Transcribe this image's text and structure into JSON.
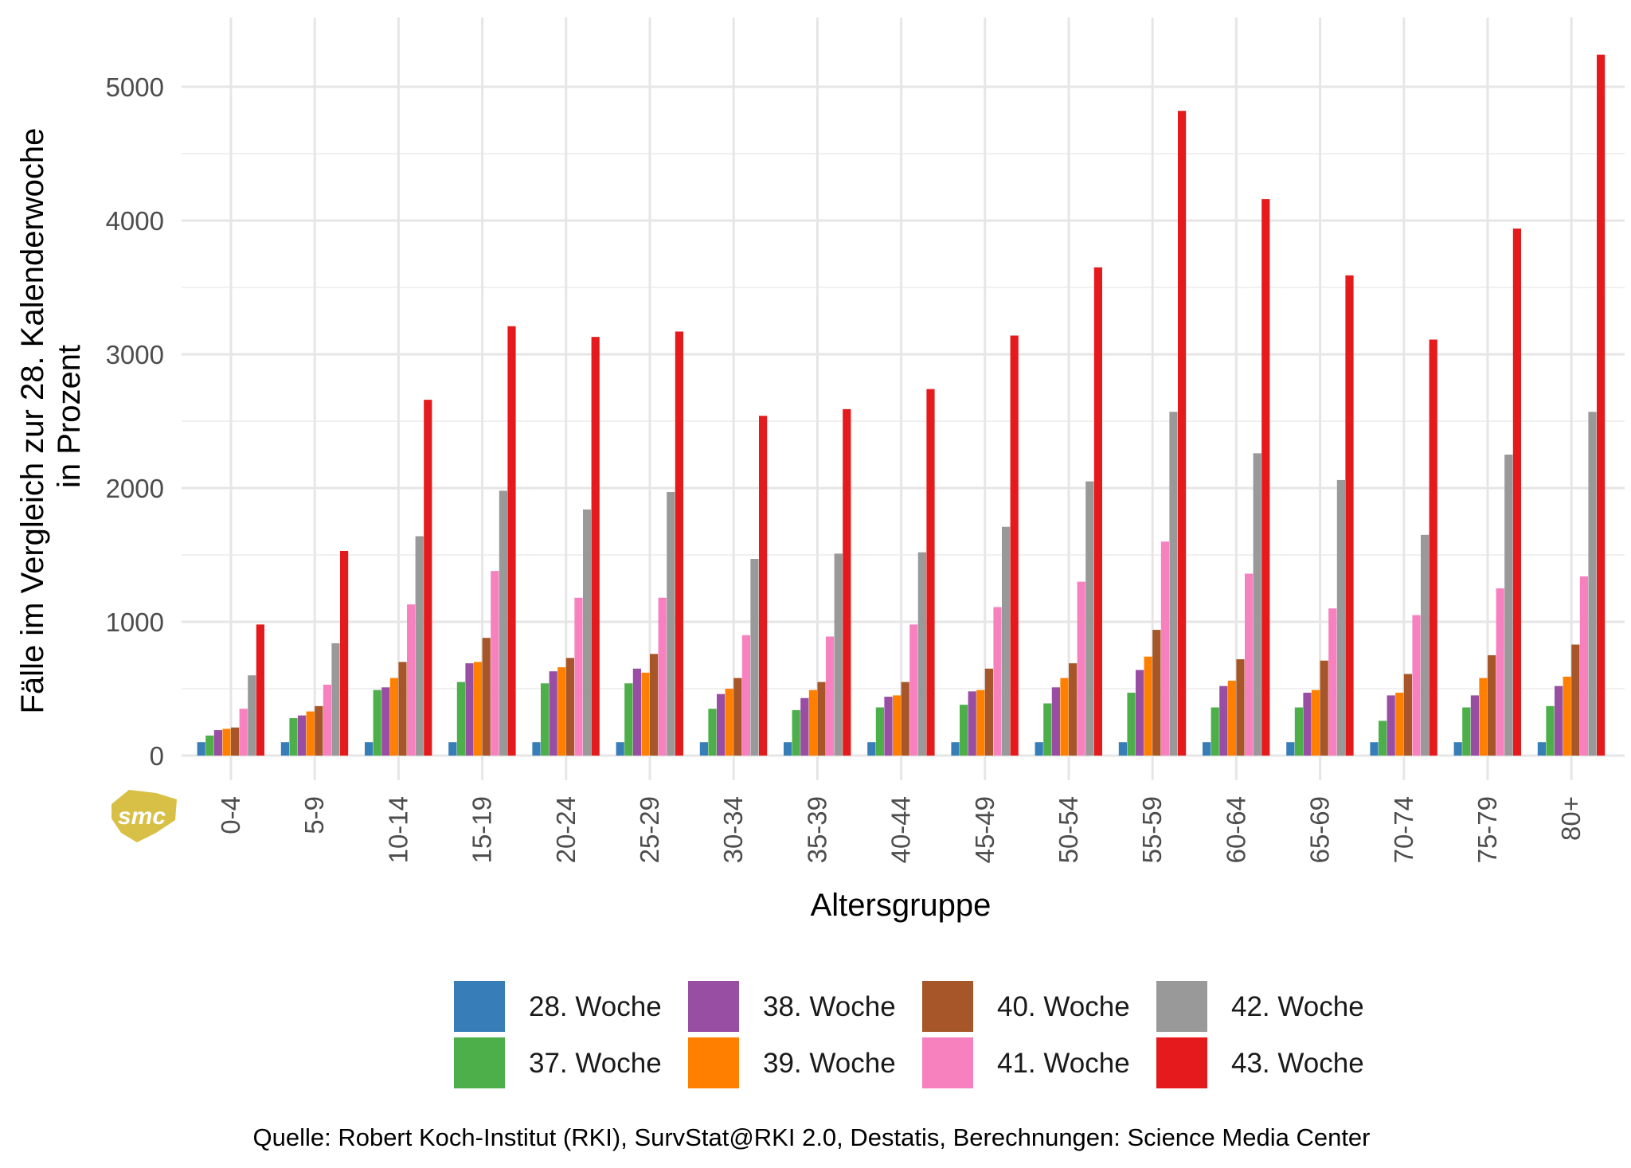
{
  "chart_data": {
    "type": "bar",
    "xlabel": "Altersgruppe",
    "ylabel_lines": [
      "Fälle im Vergleich zur 28. Kalenderwoche",
      "in Prozent"
    ],
    "ylim": [
      0,
      5300
    ],
    "yticks": [
      0,
      1000,
      2000,
      3000,
      4000,
      5000
    ],
    "grid": true,
    "legend_position": "bottom",
    "source": "Quelle: Robert Koch-Institut (RKI), SurvStat@RKI 2.0, Destatis, Berechnungen: Science Media Center",
    "logo_text": "smc",
    "categories": [
      "0-4",
      "5-9",
      "10-14",
      "15-19",
      "20-24",
      "25-29",
      "30-34",
      "35-39",
      "40-44",
      "45-49",
      "50-54",
      "55-59",
      "60-64",
      "65-69",
      "70-74",
      "75-79",
      "80+"
    ],
    "series": [
      {
        "name": "28. Woche",
        "color": "#377EB8",
        "values": [
          100,
          100,
          100,
          100,
          100,
          100,
          100,
          100,
          100,
          100,
          100,
          100,
          100,
          100,
          100,
          100,
          100
        ]
      },
      {
        "name": "37. Woche",
        "color": "#4DAF4A",
        "values": [
          150,
          280,
          490,
          550,
          540,
          540,
          350,
          340,
          360,
          380,
          390,
          470,
          360,
          360,
          260,
          360,
          370
        ]
      },
      {
        "name": "38. Woche",
        "color": "#984EA3",
        "values": [
          190,
          300,
          510,
          690,
          630,
          650,
          460,
          430,
          440,
          480,
          510,
          640,
          520,
          470,
          450,
          450,
          520
        ]
      },
      {
        "name": "39. Woche",
        "color": "#FF7F00",
        "values": [
          200,
          330,
          580,
          700,
          660,
          620,
          500,
          490,
          450,
          490,
          580,
          740,
          560,
          490,
          470,
          580,
          590
        ]
      },
      {
        "name": "40. Woche",
        "color": "#A65628",
        "values": [
          210,
          370,
          700,
          880,
          730,
          760,
          580,
          550,
          550,
          650,
          690,
          940,
          720,
          710,
          610,
          750,
          830
        ]
      },
      {
        "name": "41. Woche",
        "color": "#F781BF",
        "values": [
          350,
          530,
          1130,
          1380,
          1180,
          1180,
          900,
          890,
          980,
          1110,
          1300,
          1600,
          1360,
          1100,
          1050,
          1250,
          1340
        ]
      },
      {
        "name": "42. Woche",
        "color": "#999999",
        "values": [
          600,
          840,
          1640,
          1980,
          1840,
          1970,
          1470,
          1510,
          1520,
          1710,
          2050,
          2570,
          2260,
          2060,
          1650,
          2250,
          2570
        ]
      },
      {
        "name": "43. Woche",
        "color": "#E41A1C",
        "values": [
          980,
          1530,
          2660,
          3210,
          3130,
          3170,
          2540,
          2590,
          2740,
          3140,
          3650,
          4820,
          4160,
          3590,
          3110,
          3940,
          5240
        ]
      }
    ]
  }
}
